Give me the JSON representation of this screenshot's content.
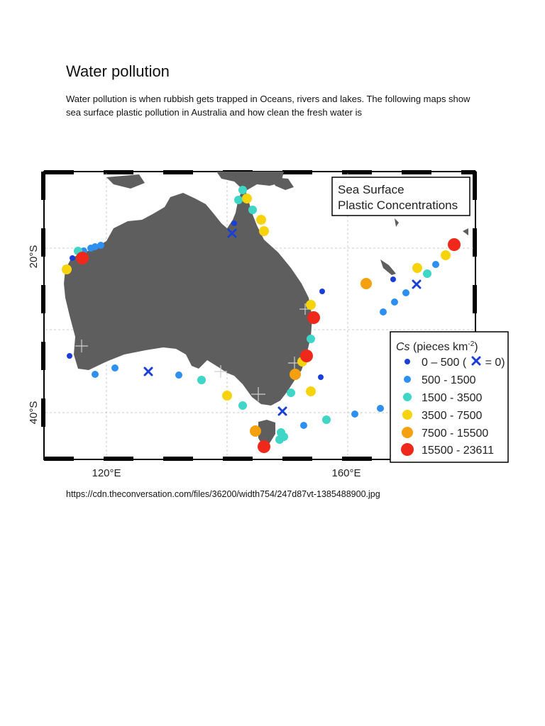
{
  "page": {
    "title": "Water pollution",
    "intro": "Water pollution is when rubbish gets trapped in Oceans, rivers and lakes. The following maps show sea surface plastic pollution in Australia and how clean the fresh water is",
    "source_url": "https://cdn.theconversation.com/files/36200/width754/247d87vt-1385488900.jpg"
  },
  "map": {
    "title_line1": "Sea Surface",
    "title_line2": "Plastic Concentrations",
    "lat_labels": [
      "20°S",
      "40°S"
    ],
    "lon_labels": [
      "120°E",
      "160°E"
    ],
    "land_color": "#5e5e5e",
    "legend": {
      "title_var": "Cs",
      "title_rest": " (pieces km",
      "title_sup": "-2",
      "title_close": ")",
      "zero_prefix": "0 – 500 (",
      "zero_suffix": " = 0)",
      "classes": [
        {
          "label": "0 – 500",
          "color": "#1a3fd6"
        },
        {
          "label": "500 - 1500",
          "color": "#2d8ff0"
        },
        {
          "label": "1500 - 3500",
          "color": "#3fd6c8"
        },
        {
          "label": "3500 - 7500",
          "color": "#f7d30c"
        },
        {
          "label": "7500 - 15500",
          "color": "#f5a00f"
        },
        {
          "label": "15500 - 23611",
          "color": "#f0281c"
        }
      ],
      "zero_marker_color": "#1a3fd6"
    }
  }
}
